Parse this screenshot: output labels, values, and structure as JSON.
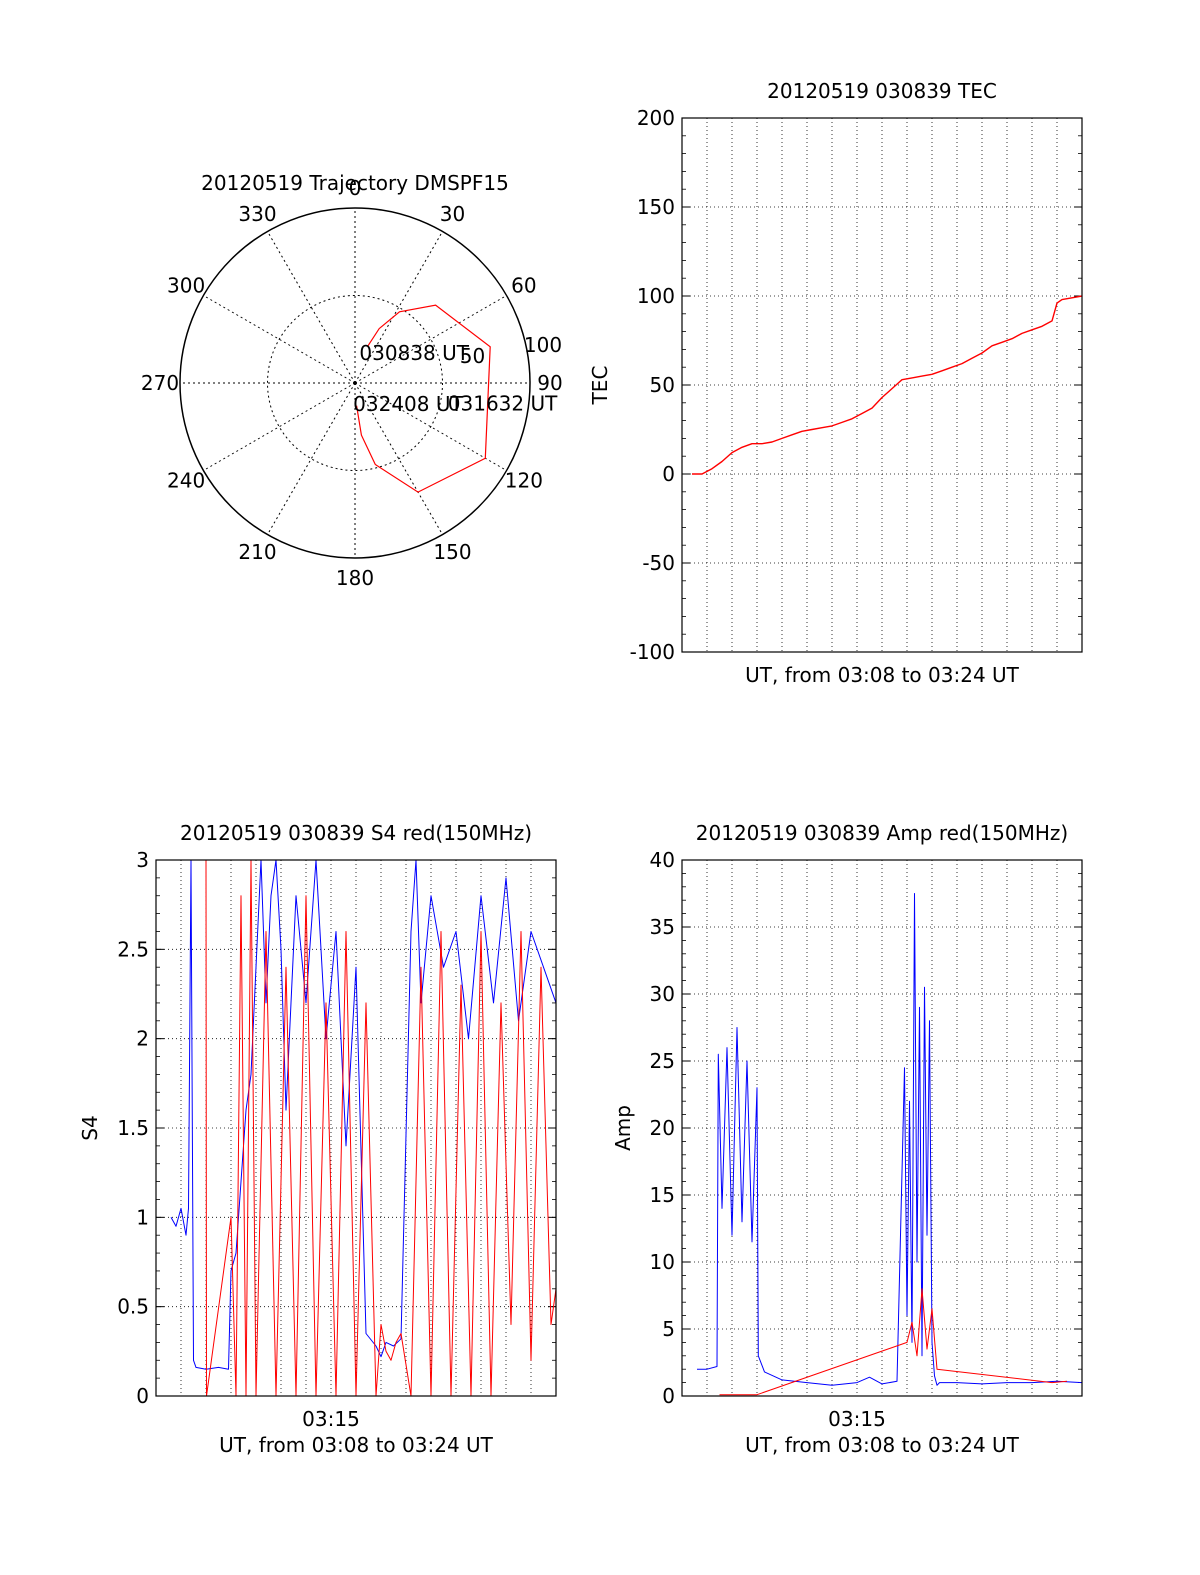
{
  "chart_data": [
    {
      "type": "polar",
      "title": "20120519 Trajectory DMSPF15",
      "azimuth_ticks": [
        "0",
        "30",
        "60",
        "90",
        "120",
        "150",
        "180",
        "210",
        "240",
        "270",
        "300",
        "330"
      ],
      "radial_labels": [
        "50",
        "100"
      ],
      "radial_max": 100,
      "grid": true,
      "track_color": "#ff0000",
      "track": [
        {
          "az": 19,
          "el": 78
        },
        {
          "az": 24,
          "el": 66
        },
        {
          "az": 32,
          "el": 52
        },
        {
          "az": 46,
          "el": 36
        },
        {
          "az": 75,
          "el": 20
        },
        {
          "az": 120,
          "el": 14
        },
        {
          "az": 150,
          "el": 28
        },
        {
          "az": 166,
          "el": 52
        },
        {
          "az": 173,
          "el": 70
        },
        {
          "az": 176,
          "el": 87
        }
      ],
      "annotations": [
        {
          "text": "030838 UT",
          "az": 17,
          "el": 82
        },
        {
          "text": "031632 UT",
          "az": 102,
          "el": 43
        },
        {
          "text": "032408 UT",
          "az": 172,
          "el": 88
        }
      ]
    },
    {
      "type": "line",
      "title": "20120519 030839 TEC",
      "xlabel": "UT, from 03:08 to 03:24 UT",
      "ylabel": "TEC",
      "xlim": [
        0,
        16
      ],
      "ylim": [
        -100,
        200
      ],
      "yticks": [
        "-100",
        "-50",
        "0",
        "50",
        "100",
        "150",
        "200"
      ],
      "grid": true,
      "series": [
        {
          "color": "#ff0000",
          "x": [
            0.4,
            0.8,
            1.2,
            1.6,
            2.0,
            2.4,
            2.8,
            3.2,
            3.6,
            4.0,
            4.4,
            4.8,
            5.2,
            5.6,
            6.0,
            6.4,
            6.8,
            7.2,
            7.6,
            8.0,
            8.4,
            8.8,
            9.2,
            9.6,
            10.0,
            10.4,
            10.8,
            11.2,
            11.6,
            12.0,
            12.4,
            12.8,
            13.2,
            13.6,
            14.0,
            14.4,
            14.8,
            15.0,
            15.2,
            15.6,
            16.0
          ],
          "y": [
            0,
            0,
            3,
            7,
            12,
            15,
            17,
            17,
            18,
            20,
            22,
            24,
            25,
            26,
            27,
            29,
            31,
            34,
            37,
            43,
            48,
            53,
            54,
            55,
            56,
            58,
            60,
            62,
            65,
            68,
            72,
            74,
            76,
            79,
            81,
            83,
            86,
            96,
            98,
            99,
            100
          ]
        }
      ]
    },
    {
      "type": "line",
      "title": "20120519 030839 S4 red(150MHz)",
      "xlabel": "UT, from 03:08 to 03:24 UT",
      "ylabel": "S4",
      "xlim": [
        0,
        16
      ],
      "ylim": [
        0,
        3
      ],
      "yticks": [
        "0",
        "0.5",
        "1",
        "1.5",
        "2",
        "2.5",
        "3"
      ],
      "xtick_label": {
        "x": 7,
        "text": "03:15"
      },
      "grid": true,
      "series": [
        {
          "color": "#0000ff",
          "x": [
            0.6,
            0.8,
            1.0,
            1.2,
            1.3,
            1.4,
            1.5,
            1.6,
            2.0,
            2.5,
            2.9,
            3.0,
            3.2,
            3.4,
            3.6,
            3.8,
            4.0,
            4.2,
            4.4,
            4.6,
            4.8,
            5.0,
            5.2,
            5.6,
            6.0,
            6.4,
            6.8,
            7.2,
            7.6,
            8.0,
            8.4,
            8.8,
            9.0,
            9.2,
            9.5,
            9.8,
            10.2,
            10.4,
            10.6,
            11.0,
            11.5,
            12.0,
            12.5,
            13.0,
            13.5,
            14.0,
            14.5,
            15.0,
            15.5,
            16.0
          ],
          "y": [
            1.0,
            0.95,
            1.05,
            0.9,
            1.05,
            3.0,
            0.2,
            0.16,
            0.15,
            0.16,
            0.15,
            0.7,
            0.8,
            1.2,
            1.6,
            1.8,
            2.4,
            3.0,
            2.2,
            2.8,
            3.0,
            2.5,
            1.6,
            2.8,
            2.2,
            3.0,
            2.0,
            2.6,
            1.4,
            2.4,
            0.35,
            0.28,
            0.22,
            0.3,
            0.28,
            0.32,
            2.6,
            3.0,
            2.2,
            2.8,
            2.4,
            2.6,
            2.0,
            2.8,
            2.2,
            2.9,
            2.1,
            2.6,
            2.4,
            2.2
          ]
        },
        {
          "color": "#ff0000",
          "x": [
            2.0,
            2.02,
            3.0,
            3.2,
            3.4,
            3.6,
            3.8,
            4.0,
            4.4,
            4.8,
            5.2,
            5.6,
            6.0,
            6.4,
            6.8,
            7.2,
            7.6,
            8.0,
            8.4,
            8.8,
            9.0,
            9.2,
            9.4,
            9.6,
            9.8,
            10.2,
            10.6,
            11.0,
            11.4,
            11.8,
            12.2,
            12.6,
            13.0,
            13.4,
            13.8,
            14.2,
            14.6,
            15.0,
            15.4,
            15.8,
            16.0
          ],
          "y": [
            3.0,
            0.0,
            1.0,
            0.0,
            2.8,
            0.0,
            3.0,
            0.0,
            2.6,
            0.0,
            2.4,
            0.0,
            2.8,
            0.0,
            2.2,
            0.0,
            2.6,
            0.0,
            2.2,
            0.0,
            0.4,
            0.25,
            0.2,
            0.3,
            0.35,
            0.0,
            2.4,
            0.0,
            2.6,
            0.0,
            2.3,
            0.0,
            2.6,
            0.0,
            2.2,
            0.4,
            2.6,
            0.2,
            2.4,
            0.4,
            0.6
          ]
        }
      ]
    },
    {
      "type": "line",
      "title": "20120519 030839 Amp red(150MHz)",
      "xlabel": "UT, from 03:08 to 03:24 UT",
      "ylabel": "Amp",
      "xlim": [
        0,
        16
      ],
      "ylim": [
        0,
        40
      ],
      "yticks": [
        "0",
        "5",
        "10",
        "15",
        "20",
        "25",
        "30",
        "35",
        "40"
      ],
      "xtick_label": {
        "x": 7,
        "text": "03:15"
      },
      "grid": true,
      "series": [
        {
          "color": "#0000ff",
          "x": [
            0.6,
            1.0,
            1.4,
            1.45,
            1.6,
            1.8,
            2.0,
            2.2,
            2.4,
            2.6,
            2.8,
            3.0,
            3.05,
            3.3,
            4.0,
            5.0,
            6.0,
            7.0,
            7.5,
            8.0,
            8.6,
            8.9,
            9.0,
            9.1,
            9.2,
            9.3,
            9.4,
            9.5,
            9.6,
            9.7,
            9.8,
            9.9,
            10.0,
            10.1,
            10.2,
            10.3,
            11.0,
            12.0,
            13.0,
            14.0,
            15.0,
            16.0
          ],
          "y": [
            2.0,
            2.0,
            2.2,
            25.5,
            14.0,
            26.0,
            12.0,
            27.5,
            13.0,
            25.0,
            11.5,
            23.0,
            3.0,
            1.8,
            1.2,
            1.0,
            0.8,
            1.0,
            1.4,
            0.9,
            1.1,
            24.5,
            6.0,
            22.0,
            4.0,
            37.5,
            10.0,
            29.0,
            3.0,
            30.5,
            12.0,
            28.0,
            4.0,
            1.5,
            0.8,
            1.0,
            1.0,
            0.9,
            1.0,
            1.0,
            1.1,
            1.0
          ]
        },
        {
          "color": "#ff0000",
          "x": [
            1.5,
            3.0,
            9.0,
            9.2,
            9.4,
            9.6,
            9.8,
            10.0,
            10.2,
            14.8,
            15.4
          ],
          "y": [
            0.1,
            0.1,
            4.0,
            5.5,
            3.0,
            8.0,
            3.5,
            6.5,
            2.0,
            1.0,
            1.1
          ]
        }
      ]
    }
  ]
}
